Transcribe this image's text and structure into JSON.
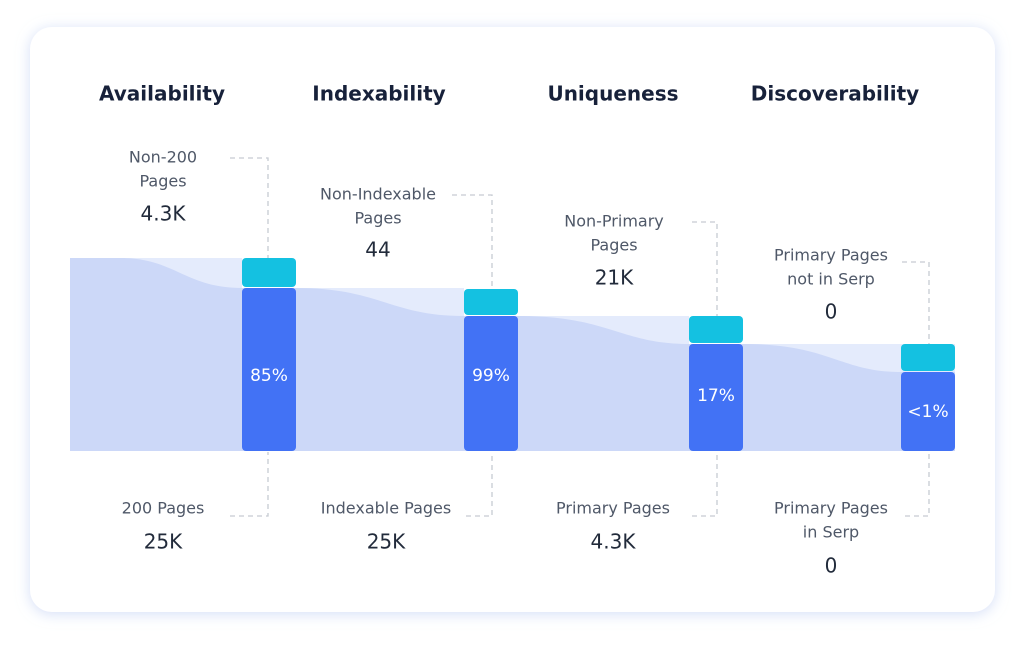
{
  "stages": [
    {
      "title": "Availability",
      "top_label": [
        "Non-200",
        "Pages"
      ],
      "top_value": "4.3K",
      "percent": "85%",
      "bottom_label": [
        "200 Pages"
      ],
      "bottom_value": "25K"
    },
    {
      "title": "Indexability",
      "top_label": [
        "Non-Indexable",
        "Pages"
      ],
      "top_value": "44",
      "percent": "99%",
      "bottom_label": [
        "Indexable Pages"
      ],
      "bottom_value": "25K"
    },
    {
      "title": "Uniqueness",
      "top_label": [
        "Non-Primary",
        "Pages"
      ],
      "top_value": "21K",
      "percent": "17%",
      "bottom_label": [
        "Primary Pages"
      ],
      "bottom_value": "4.3K"
    },
    {
      "title": "Discoverability",
      "top_label": [
        "Primary Pages",
        "not in Serp"
      ],
      "top_value": "0",
      "percent": "<1%",
      "bottom_label": [
        "Primary Pages",
        "in Serp"
      ],
      "bottom_value": "0"
    }
  ]
}
